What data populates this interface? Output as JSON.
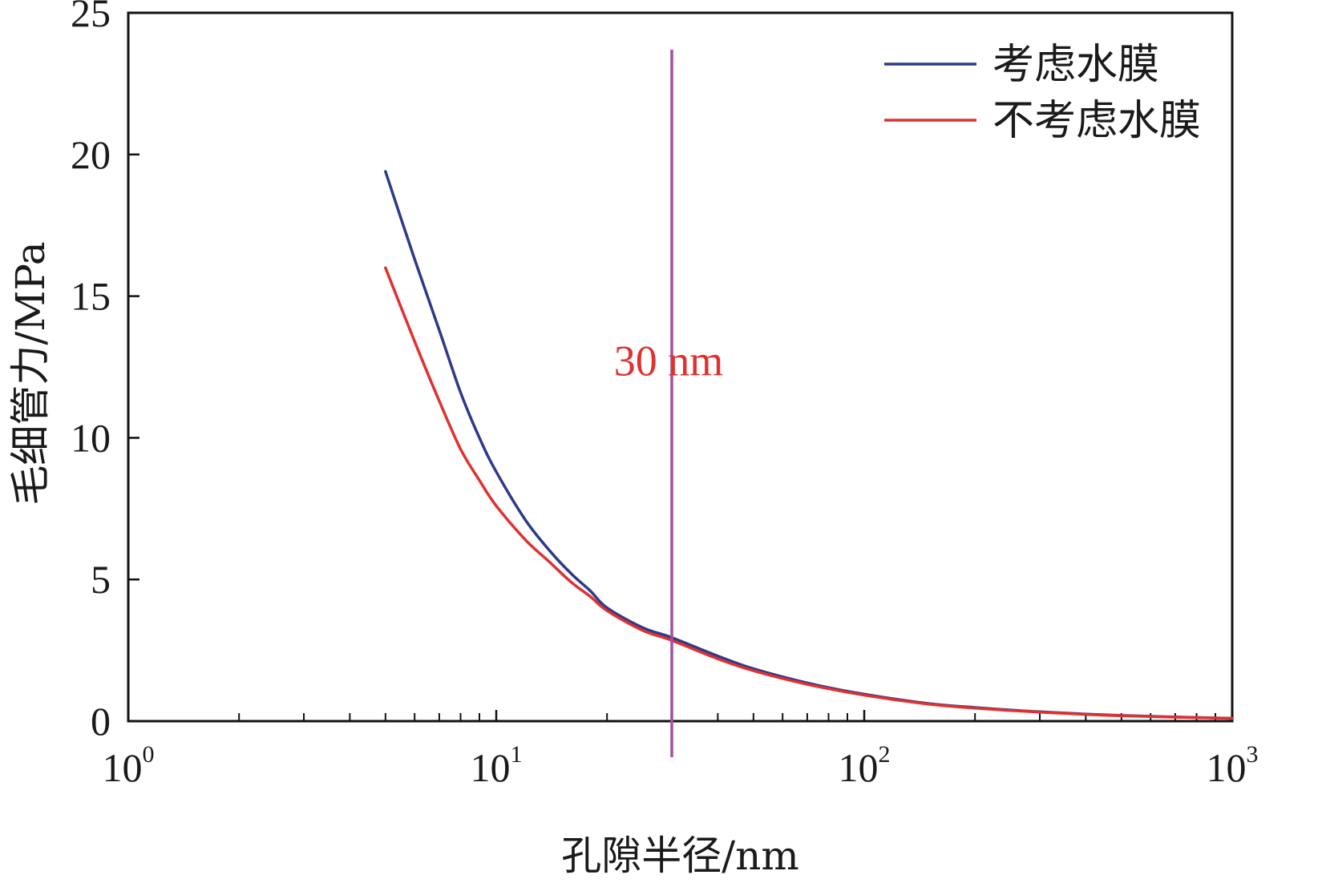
{
  "chart_data": {
    "type": "line",
    "xlabel": "孔隙半径/nm",
    "ylabel": "毛细管力/MPa",
    "xscale": "log",
    "xlim": [
      1,
      1000
    ],
    "ylim": [
      0,
      25
    ],
    "grid": false,
    "legend_position": "top-right",
    "x_ticks": [
      {
        "base": "10",
        "exp": "0",
        "value": 1
      },
      {
        "base": "10",
        "exp": "1",
        "value": 10
      },
      {
        "base": "10",
        "exp": "2",
        "value": 100
      },
      {
        "base": "10",
        "exp": "3",
        "value": 1000
      }
    ],
    "y_ticks": [
      {
        "label": "0",
        "value": 0
      },
      {
        "label": "5",
        "value": 5
      },
      {
        "label": "10",
        "value": 10
      },
      {
        "label": "15",
        "value": 15
      },
      {
        "label": "20",
        "value": 20
      },
      {
        "label": "25",
        "value": 25
      }
    ],
    "series": [
      {
        "name": "考虑水膜",
        "color": "#2e3a87",
        "x": [
          5,
          6,
          7,
          8,
          9,
          10,
          12,
          14,
          16,
          18,
          20,
          25,
          30,
          40,
          50,
          70,
          100,
          150,
          200,
          300,
          500,
          1000
        ],
        "y": [
          19.4,
          16.3,
          13.8,
          11.6,
          10.0,
          8.8,
          7.1,
          6.0,
          5.2,
          4.6,
          4.0,
          3.3,
          2.95,
          2.3,
          1.85,
          1.35,
          0.95,
          0.62,
          0.48,
          0.33,
          0.2,
          0.1
        ]
      },
      {
        "name": "不考虑水膜",
        "color": "#e03030",
        "x": [
          5,
          6,
          7,
          8,
          9,
          10,
          12,
          14,
          16,
          18,
          20,
          25,
          30,
          40,
          50,
          70,
          100,
          150,
          200,
          300,
          500,
          1000
        ],
        "y": [
          16.0,
          13.4,
          11.3,
          9.6,
          8.5,
          7.6,
          6.4,
          5.6,
          4.9,
          4.4,
          3.9,
          3.2,
          2.85,
          2.2,
          1.78,
          1.3,
          0.92,
          0.6,
          0.46,
          0.32,
          0.19,
          0.1
        ]
      }
    ],
    "vline": {
      "x": 30,
      "color": "#a050a0"
    },
    "annotation": {
      "text": "30 nm",
      "color": "#e03030"
    }
  }
}
